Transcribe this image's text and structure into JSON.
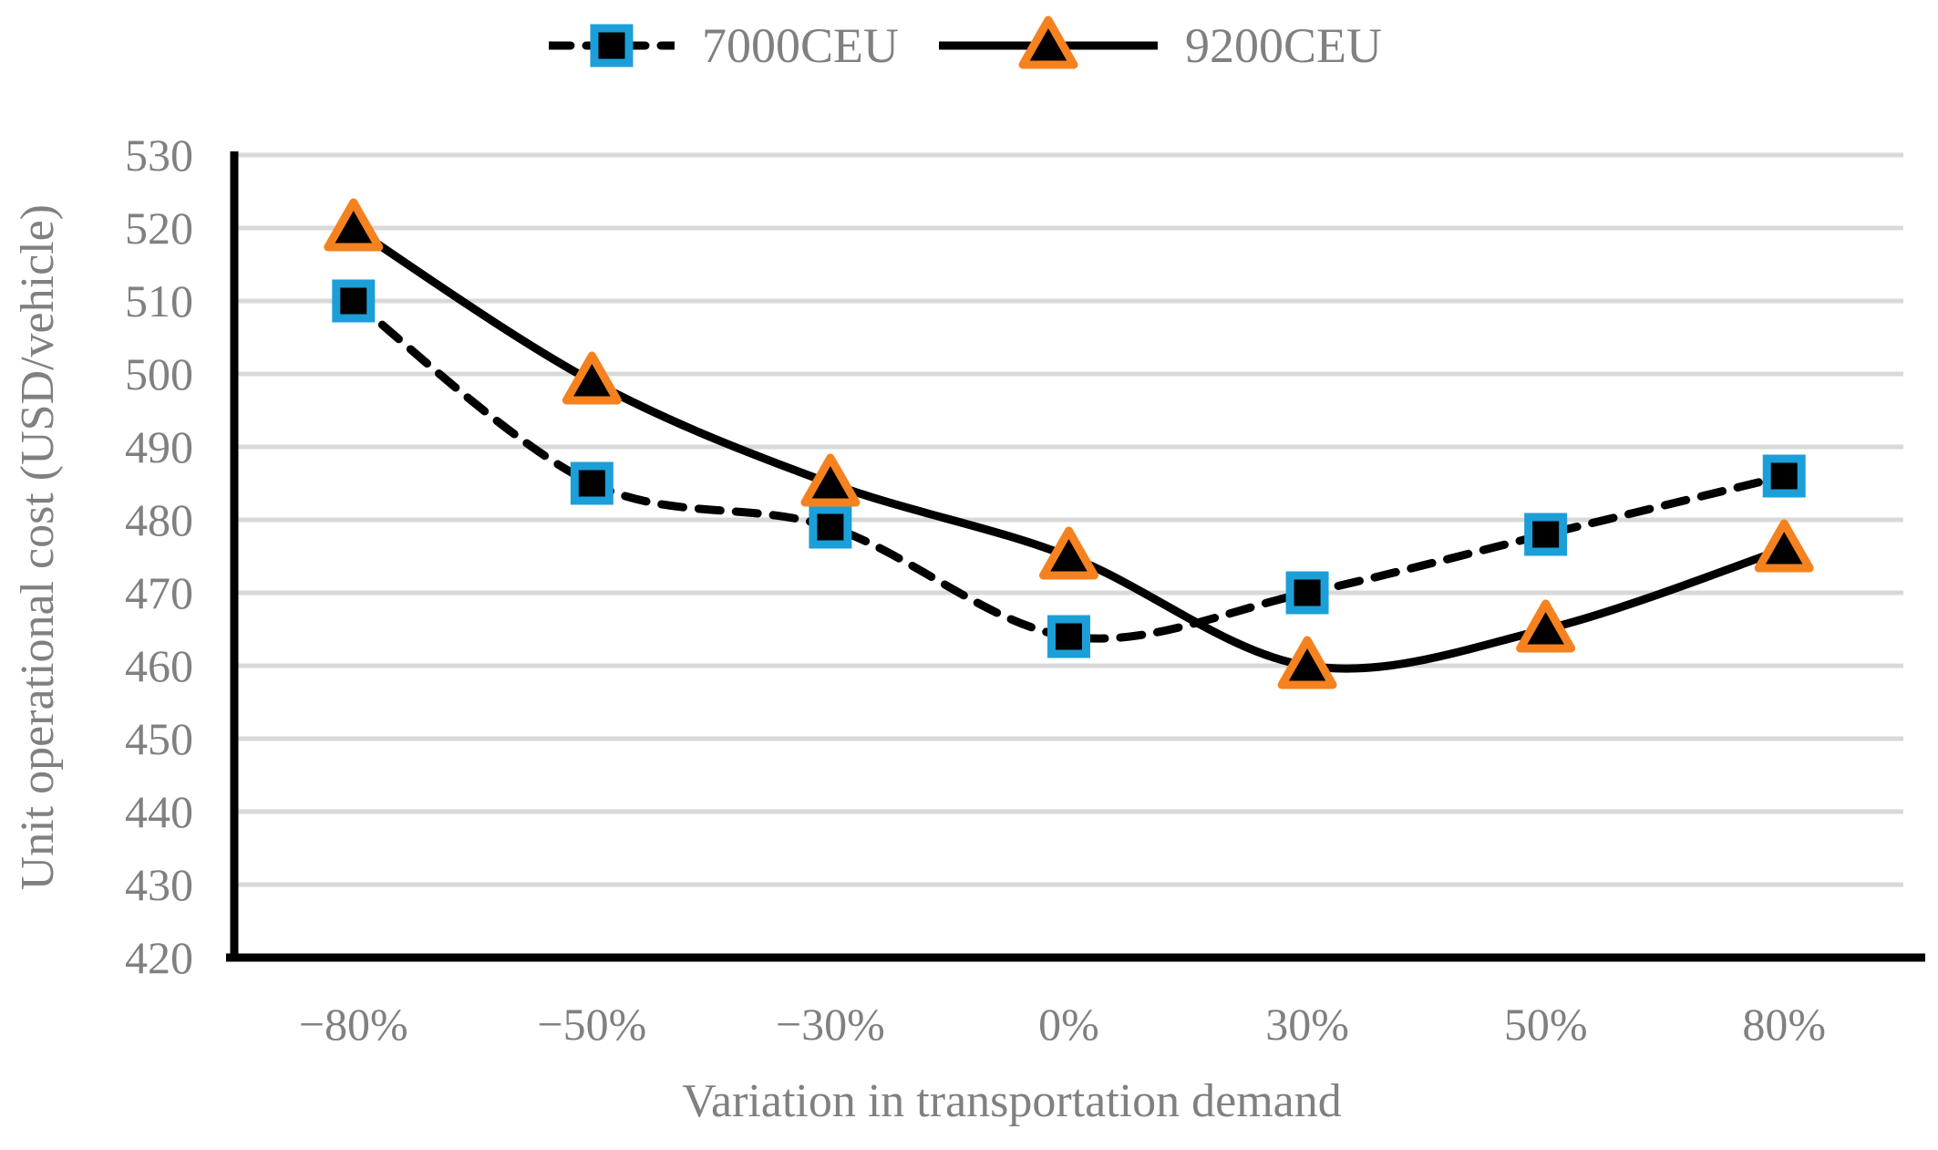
{
  "figure": {
    "kind": "sensitivity-analysis-line-chart"
  },
  "legend": {
    "items": [
      {
        "label": "7000CEU",
        "sample": "dashed-line-with-square-marker"
      },
      {
        "label": "9200CEU",
        "sample": "solid-line-with-triangle-marker"
      }
    ]
  },
  "colors": {
    "series1_marker_border": "#1C9FD8",
    "series2_marker_border": "#F5821F",
    "marker_fill": "#000000",
    "line": "#000000",
    "grid": "#D9D9D9",
    "axis": "#000000",
    "text": "#808080",
    "background": "#FFFFFF"
  },
  "chart_data": {
    "type": "line",
    "title": "",
    "xlabel": "Variation in transportation demand",
    "ylabel": "Unit operational cost (USD/vehicle)",
    "categories": [
      "−80%",
      "−50%",
      "−30%",
      "0%",
      "30%",
      "50%",
      "80%"
    ],
    "series": [
      {
        "name": "7000CEU",
        "line_style": "dashed",
        "marker": "square",
        "marker_border_color": "#1C9FD8",
        "values": [
          510,
          485,
          479,
          464,
          470,
          478,
          486
        ]
      },
      {
        "name": "9200CEU",
        "line_style": "solid",
        "marker": "triangle",
        "marker_border_color": "#F5821F",
        "values": [
          520,
          499,
          485,
          475,
          460,
          465,
          476
        ]
      }
    ],
    "ylim": [
      420,
      530
    ],
    "ytick_step": 10,
    "yticks": [
      420,
      430,
      440,
      450,
      460,
      470,
      480,
      490,
      500,
      510,
      520,
      530
    ],
    "grid": "horizontal-only",
    "legend_position": "top-center",
    "smoothed_lines": true
  }
}
